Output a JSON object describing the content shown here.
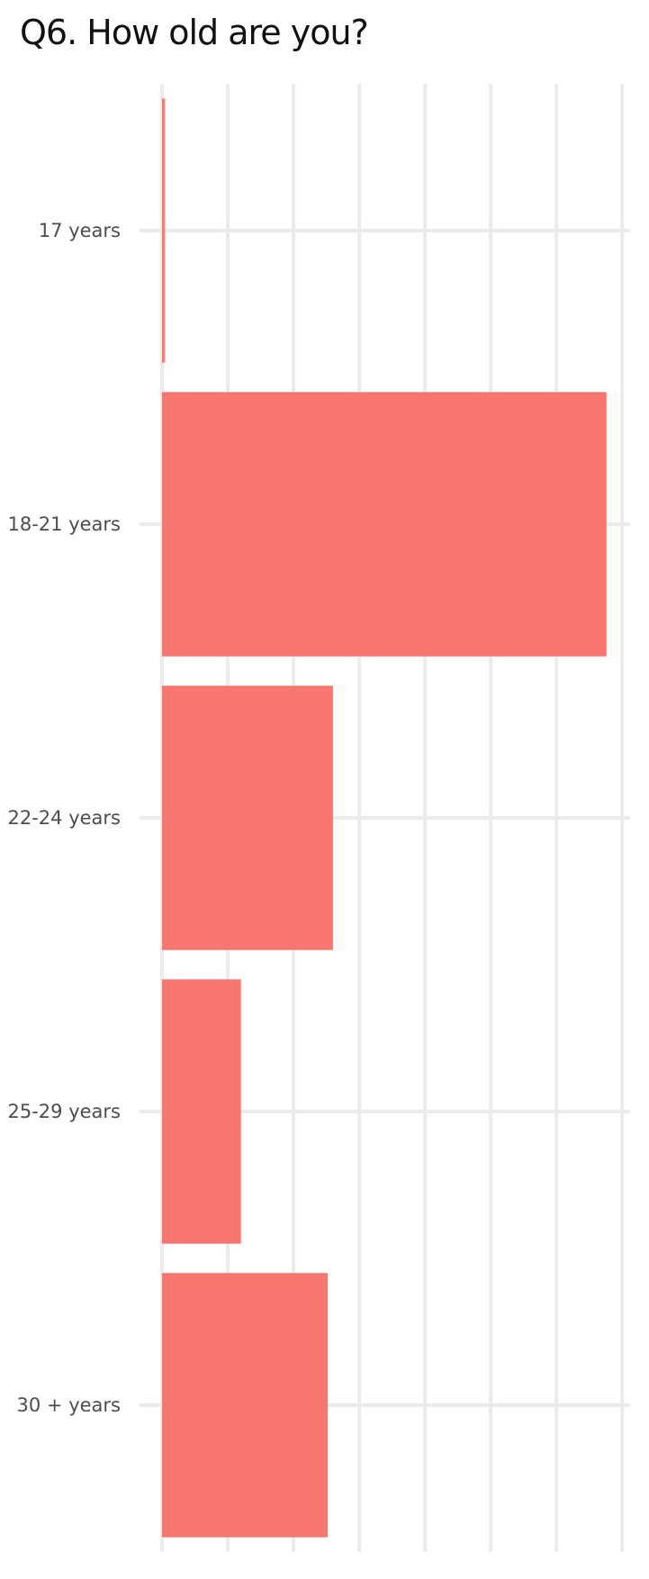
{
  "chart_data": {
    "type": "bar",
    "orientation": "horizontal",
    "title": "Q6. How old are you?",
    "xlabel": "",
    "ylabel": "",
    "categories": [
      "17 years",
      "18-21 years",
      "22-24 years",
      "25-29 years",
      "30 + years"
    ],
    "values": [
      1,
      169,
      65,
      30,
      63
    ],
    "xlim": [
      0,
      178
    ],
    "grid": true,
    "legend": "none",
    "x_tick_labels_shown": false,
    "colors": {
      "bar": "#F8766D",
      "grid": "#EBEBEB",
      "tick_label": "#4D4D4D",
      "title": "#111111"
    }
  }
}
